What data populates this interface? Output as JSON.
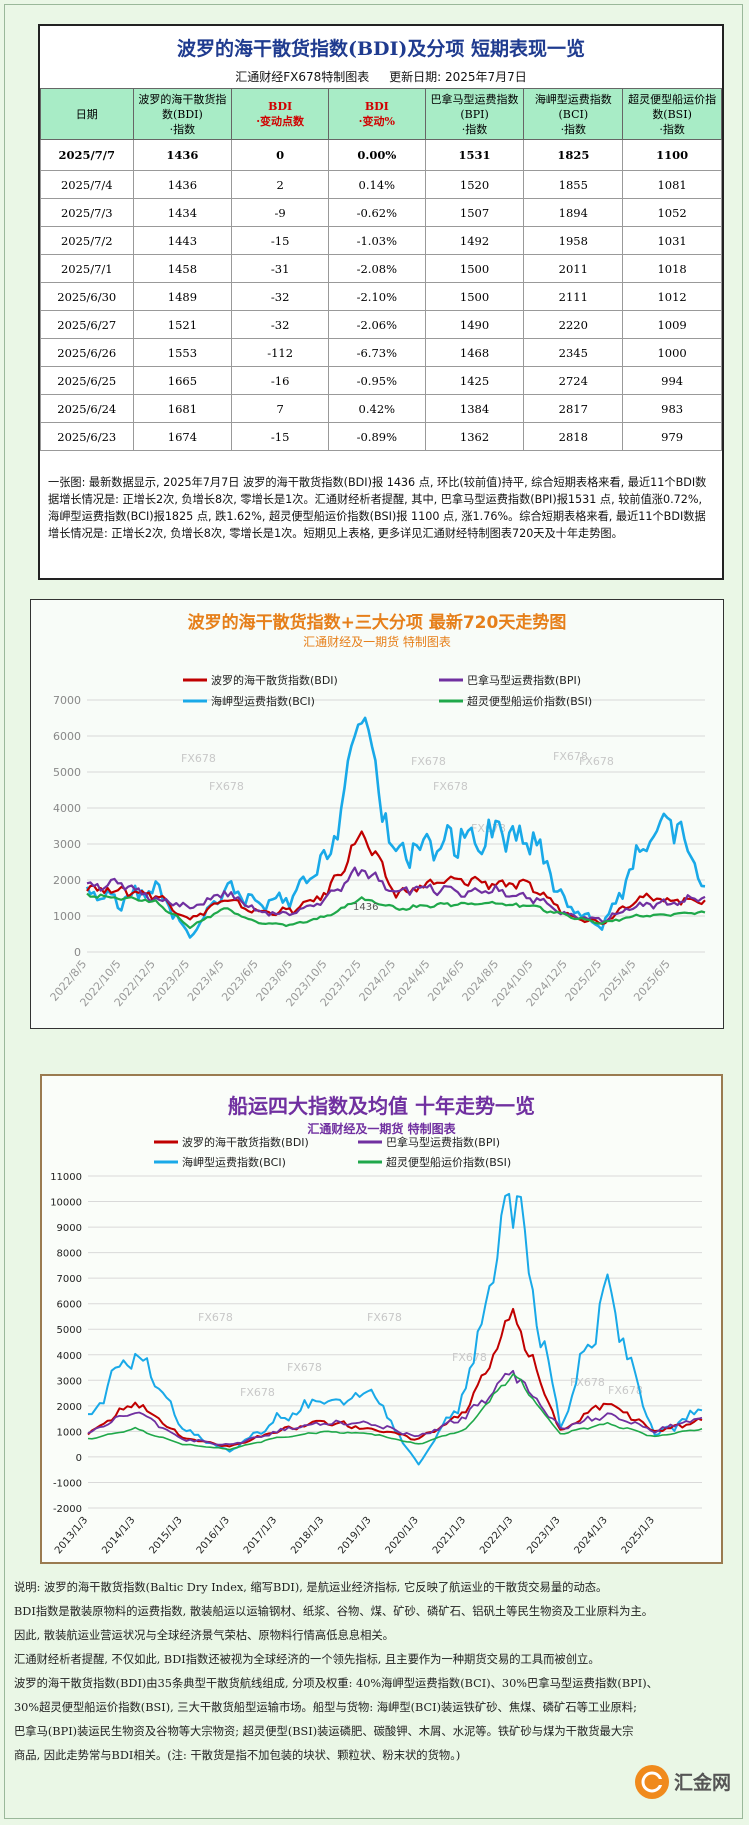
{
  "table": {
    "title": "波罗的海干散货指数(BDI)及分项  短期表现一览",
    "made_by": "汇通财经FX678特制图表",
    "updated": "更新日期: 2025年7月7日",
    "headers": [
      "日期",
      "波罗的海干散货指数(BDI)·指数",
      "BDI·变动点数",
      "BDI·变动%",
      "巴拿马型运费指数(BPI)·指数",
      "海岬型运费指数(BCI)·指数",
      "超灵便型船运价指数(BSI)·指数"
    ],
    "rows": [
      [
        "2025/7/7",
        "1436",
        "0",
        "0.00%",
        "1531",
        "1825",
        "1100"
      ],
      [
        "2025/7/4",
        "1436",
        "2",
        "0.14%",
        "1520",
        "1855",
        "1081"
      ],
      [
        "2025/7/3",
        "1434",
        "-9",
        "-0.62%",
        "1507",
        "1894",
        "1052"
      ],
      [
        "2025/7/2",
        "1443",
        "-15",
        "-1.03%",
        "1492",
        "1958",
        "1031"
      ],
      [
        "2025/7/1",
        "1458",
        "-31",
        "-2.08%",
        "1500",
        "2011",
        "1018"
      ],
      [
        "2025/6/30",
        "1489",
        "-32",
        "-2.10%",
        "1500",
        "2111",
        "1012"
      ],
      [
        "2025/6/27",
        "1521",
        "-32",
        "-2.06%",
        "1490",
        "2220",
        "1009"
      ],
      [
        "2025/6/26",
        "1553",
        "-112",
        "-6.73%",
        "1468",
        "2345",
        "1000"
      ],
      [
        "2025/6/25",
        "1665",
        "-16",
        "-0.95%",
        "1425",
        "2724",
        "994"
      ],
      [
        "2025/6/24",
        "1681",
        "7",
        "0.42%",
        "1384",
        "2817",
        "983"
      ],
      [
        "2025/6/23",
        "1674",
        "-15",
        "-0.89%",
        "1362",
        "2818",
        "979"
      ]
    ],
    "note": "一张图: 最新数据显示, 2025年7月7日 波罗的海干散货指数(BDI)报 1436 点, 环比(较前值)持平, 综合短期表格来看, 最近11个BDI数据增长情况是: 正增长2次, 负增长8次, 零增长是1次。汇通财经析者提醒, 其中, 巴拿马型运费指数(BPI)报1531 点, 较前值涨0.72%, 海岬型运费指数(BCI)报1825 点, 跌1.62%, 超灵便型船运价指数(BSI)报 1100 点, 涨1.76%。综合短期表格来看, 最近11个BDI数据增长情况是: 正增长2次, 负增长8次, 零增长是1次。短期见上表格, 更多详见汇通财经特制图表720天及十年走势图。"
  },
  "chart1": {
    "title": "波罗的海干散货指数+三大分项  最新720天走势图",
    "subtitle": "汇通财经及一期货  特制图表",
    "watermark": "FX678",
    "legend": [
      "波罗的海干散货指数(BDI)",
      "巴拿马型运费指数(BPI)",
      "海岬型运费指数(BCI)",
      "超灵便型船运价指数(BSI)"
    ],
    "annotation": "1436"
  },
  "chart2": {
    "title": "船运四大指数及均值 十年走势一览",
    "subtitle": "汇通财经及一期货 特制图表",
    "watermark": "FX678",
    "legend": [
      "波罗的海干散货指数(BDI)",
      "巴拿马型运费指数(BPI)",
      "海岬型运费指数(BCI)",
      "超灵便型船运价指数(BSI)"
    ]
  },
  "colors": {
    "BDI": "#c00000",
    "BPI": "#7030a0",
    "BCI": "#19a9e8",
    "BSI": "#1fa84a"
  },
  "chart_data": [
    {
      "type": "line",
      "title": "波罗的海干散货指数+三大分项  最新720天走势图",
      "ylim": [
        0,
        7000
      ],
      "yticks": [
        0,
        1000,
        2000,
        3000,
        4000,
        5000,
        6000,
        7000
      ],
      "x": [
        "2022/8/5",
        "2022/10/5",
        "2022/12/5",
        "2023/2/5",
        "2023/4/5",
        "2023/6/5",
        "2023/8/5",
        "2023/10/5",
        "2023/12/5",
        "2024/2/5",
        "2024/4/5",
        "2024/6/5",
        "2024/8/5",
        "2024/10/5",
        "2024/12/5",
        "2025/2/5",
        "2025/4/5",
        "2025/6/5",
        "2025/7/7"
      ],
      "legend": "top",
      "grid": true,
      "series": [
        {
          "name": "波罗的海干散货指数(BDI)",
          "values": [
            1800,
            1700,
            1600,
            900,
            1450,
            1100,
            1150,
            1650,
            3300,
            1600,
            1900,
            2000,
            1900,
            1800,
            1050,
            800,
            1500,
            1450,
            1436
          ]
        },
        {
          "name": "巴拿马型运费指数(BPI)",
          "values": [
            1900,
            1850,
            1500,
            1200,
            1650,
            1100,
            1050,
            1500,
            2300,
            1700,
            1800,
            1600,
            1700,
            1500,
            1000,
            900,
            1300,
            1350,
            1531
          ]
        },
        {
          "name": "海岬型运费指数(BCI)",
          "values": [
            1700,
            1400,
            1800,
            400,
            1800,
            1300,
            1500,
            2600,
            6500,
            2700,
            3000,
            3200,
            3300,
            3100,
            1300,
            700,
            2500,
            3700,
            1825
          ]
        },
        {
          "name": "超灵便型船运价指数(BSI)",
          "values": [
            1600,
            1500,
            1400,
            700,
            1200,
            800,
            750,
            1000,
            1500,
            1200,
            1300,
            1350,
            1350,
            1250,
            1000,
            800,
            1000,
            1050,
            1100
          ]
        }
      ]
    },
    {
      "type": "line",
      "title": "船运四大指数及均值 十年走势一览",
      "ylim": [
        -2000,
        11000
      ],
      "yticks": [
        -2000,
        -1000,
        0,
        1000,
        2000,
        3000,
        4000,
        5000,
        6000,
        7000,
        8000,
        9000,
        10000,
        11000
      ],
      "x": [
        "2013/1/3",
        "2014/1/3",
        "2015/1/3",
        "2016/1/3",
        "2017/1/3",
        "2018/1/3",
        "2019/1/3",
        "2020/1/3",
        "2021/1/3",
        "2022/1/3",
        "2023/1/3",
        "2024/1/3",
        "2025/1/3",
        "2025/7/7"
      ],
      "legend": "top",
      "grid": true,
      "series": [
        {
          "name": "波罗的海干散货指数(BDI)",
          "values": [
            900,
            2200,
            750,
            400,
            1000,
            1400,
            1100,
            700,
            1800,
            5600,
            1000,
            2200,
            1000,
            1436
          ]
        },
        {
          "name": "巴拿马型运费指数(BPI)",
          "values": [
            900,
            1800,
            700,
            450,
            1000,
            1350,
            1300,
            800,
            1600,
            3300,
            1100,
            1700,
            1000,
            1531
          ]
        },
        {
          "name": "海岬型运费指数(BCI)",
          "values": [
            1500,
            4300,
            1100,
            200,
            1500,
            2200,
            2500,
            -300,
            2500,
            10600,
            1200,
            6500,
            800,
            1825
          ]
        },
        {
          "name": "超灵便型船运价指数(BSI)",
          "values": [
            700,
            1100,
            500,
            300,
            750,
            1000,
            900,
            500,
            1100,
            3300,
            900,
            1300,
            800,
            1100
          ]
        }
      ]
    }
  ],
  "description": {
    "lines": [
      "说明: 波罗的海干散货指数(Baltic Dry Index, 缩写BDI), 是航运业经济指标, 它反映了航运业的干散货交易量的动态。",
      "BDI指数是散装原物料的运费指数, 散装船运以运输钢材、纸浆、谷物、煤、矿砂、磷矿石、铝矾土等民生物资及工业原料为主。",
      "因此, 散装航运业营运状况与全球经济景气荣枯、原物料行情高低息息相关。",
      "汇通财经析者提醒, 不仅如此, BDI指数还被视为全球经济的一个领先指标, 且主要作为一种期货交易的工具而被创立。",
      "波罗的海干散货指数(BDI)由35条典型干散货航线组成, 分项及权重: 40%海岬型运费指数(BCI)、30%巴拿马型运费指数(BPI)、",
      "30%超灵便型船运价指数(BSI), 三大干散货船型运输市场。船型与货物: 海岬型(BCI)装运铁矿砂、焦煤、磷矿石等工业原料;",
      "巴拿马(BPI)装运民生物资及谷物等大宗物资; 超灵便型(BSI)装运磷肥、碳酸钾、木屑、水泥等。铁矿砂与煤为干散货最大宗",
      "商品, 因此走势常与BDI相关。(注: 干散货是指不加包装的块状、颗粒状、粉末状的货物。)"
    ]
  },
  "logo": {
    "text": "汇金网",
    "sub": "www.gold678.com"
  }
}
